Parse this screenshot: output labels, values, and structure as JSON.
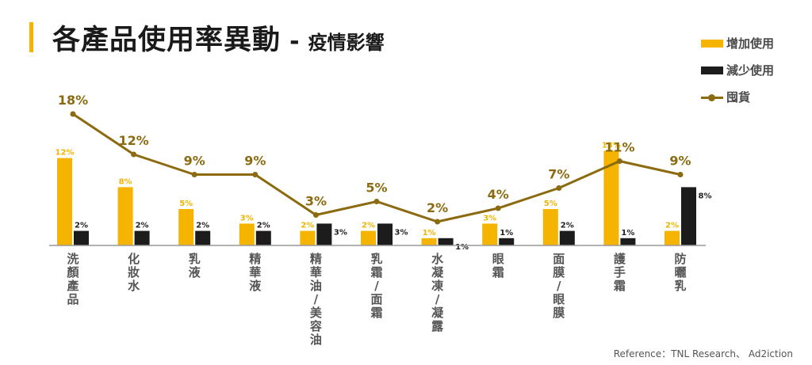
{
  "title": {
    "main": "各產品使用率異動",
    "separator": "-",
    "sub": "疫情影響"
  },
  "reference": "Reference：TNL Research、 Ad2iction",
  "colors": {
    "increase": "#f4b400",
    "decrease": "#1c1c1c",
    "hoarding": "#8b6a10",
    "axis": "#999999",
    "category_text": "#555555"
  },
  "chart_data": {
    "type": "bar",
    "categories": [
      "洗顏產品",
      "化妝水",
      "乳液",
      "精華液",
      "精華油/美容油",
      "乳霜/面霜",
      "水凝凍/凝露",
      "眼霜",
      "面膜/眼膜",
      "護手霜",
      "防曬乳"
    ],
    "series": [
      {
        "name": "增加使用",
        "type": "bar",
        "values": [
          12,
          8,
          5,
          3,
          2,
          2,
          1,
          3,
          5,
          13,
          2
        ],
        "labels": [
          "12%",
          "8%",
          "5%",
          "3%",
          "2%",
          "2%",
          "1%",
          "3%",
          "5%",
          "13%",
          "2%"
        ]
      },
      {
        "name": "減少使用",
        "type": "bar",
        "values": [
          2,
          2,
          2,
          2,
          3,
          3,
          1,
          1,
          2,
          1,
          8
        ],
        "labels": [
          "2%",
          "2%",
          "2%",
          "2%",
          "3%",
          "3%",
          "1%",
          "1%",
          "2%",
          "1%",
          "8%"
        ]
      },
      {
        "name": "囤貨",
        "type": "line",
        "values": [
          18,
          12,
          9,
          9,
          3,
          5,
          2,
          4,
          7,
          11,
          9
        ],
        "labels": [
          "18%",
          "12%",
          "9%",
          "9%",
          "3%",
          "5%",
          "2%",
          "4%",
          "7%",
          "11%",
          "9%"
        ]
      }
    ],
    "ylim": [
      0,
      22
    ],
    "grid": false,
    "legend_position": "top-right"
  }
}
